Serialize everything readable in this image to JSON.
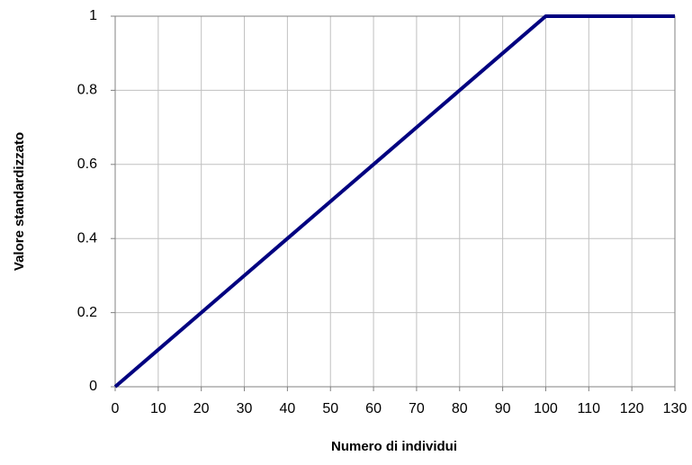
{
  "chart_data": {
    "type": "line",
    "x_label": "Numero di individui",
    "y_label": "Valore standardizzato",
    "x": [
      0,
      10,
      20,
      30,
      40,
      50,
      60,
      70,
      80,
      90,
      100,
      110,
      120,
      130
    ],
    "series": [
      {
        "color": "#000080",
        "values": [
          0,
          0.1,
          0.2,
          0.3,
          0.4,
          0.5,
          0.6,
          0.7,
          0.8,
          0.9,
          1,
          1,
          1,
          1
        ]
      }
    ],
    "xlim": [
      0,
      130
    ],
    "xticks": [
      0,
      10,
      20,
      30,
      40,
      50,
      60,
      70,
      80,
      90,
      100,
      110,
      120,
      130
    ],
    "ylim": [
      0,
      1
    ],
    "yticks": [
      0,
      0.2,
      0.4,
      0.6,
      0.8,
      1
    ],
    "grid": true
  }
}
